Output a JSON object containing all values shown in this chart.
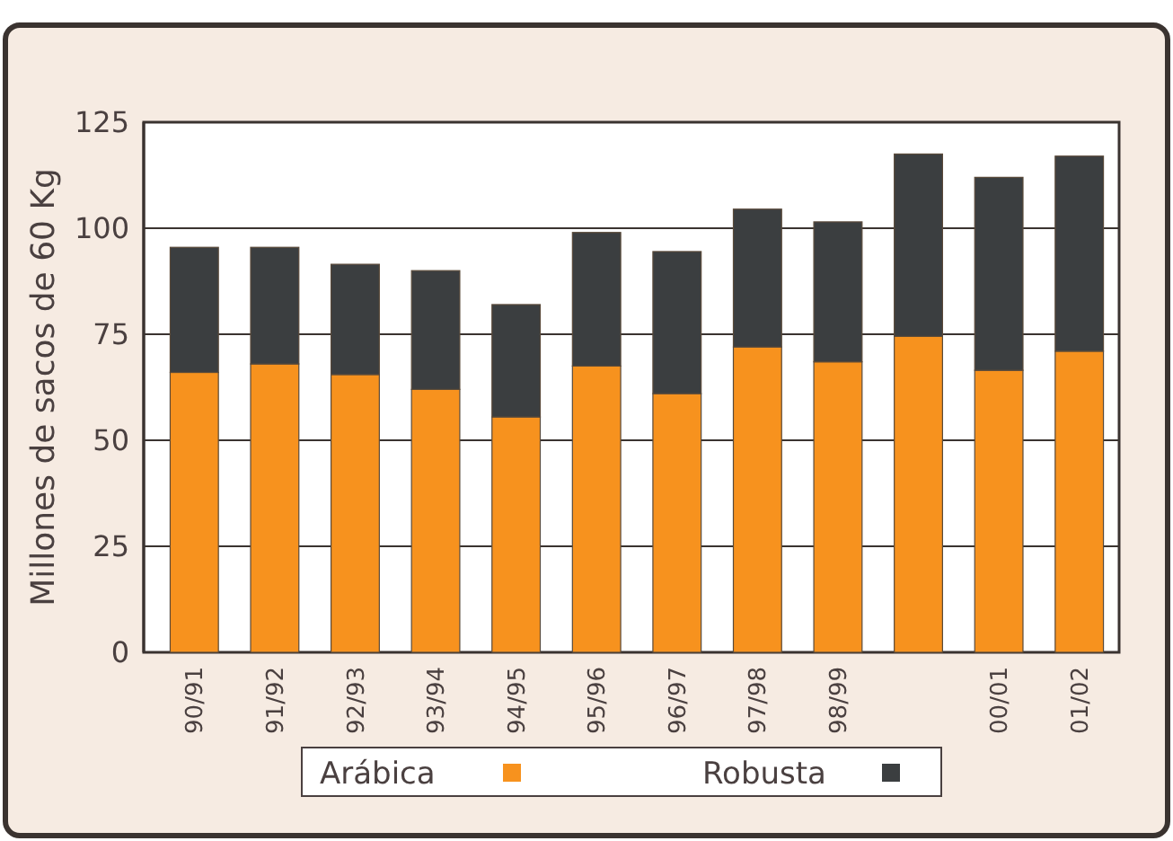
{
  "chart_data": {
    "type": "bar",
    "ylabel": "Millones de sacos de 60 Kg",
    "stacked": true,
    "legend": "bottom",
    "grid": "y",
    "categories": [
      "90/91",
      "91/92",
      "92/93",
      "93/94",
      "94/95",
      "95/96",
      "96/97",
      "97/98",
      "98/99",
      null,
      "00/01",
      "01/02"
    ],
    "series": [
      {
        "name": "Arábica",
        "color": "#f7921e",
        "values": [
          66,
          68,
          65.5,
          62,
          55.5,
          67.5,
          61,
          72,
          68.5,
          74.5,
          66.5,
          71
        ]
      },
      {
        "name": "Robusta",
        "color": "#3b3e40",
        "values": [
          29.5,
          27.5,
          26,
          28,
          26.5,
          31.5,
          33.5,
          32.5,
          33,
          43,
          45.5,
          46
        ]
      }
    ],
    "ylim": [
      0,
      125
    ],
    "yticks": [
      0,
      25,
      50,
      75,
      100,
      125
    ]
  }
}
